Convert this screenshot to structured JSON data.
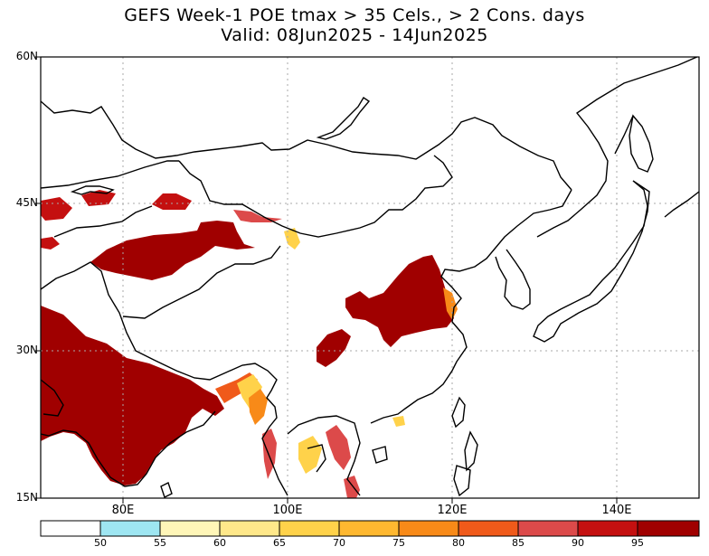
{
  "title": {
    "line1": "GEFS Week-1 POE tmax > 35 Cels., > 2 Cons. days",
    "line2": "Valid: 08Jun2025 - 14Jun2025"
  },
  "map": {
    "lat_labels": [
      "60N",
      "45N",
      "30N",
      "15N"
    ],
    "lon_labels": [
      "80E",
      "100E",
      "120E",
      "140E"
    ],
    "colors": {
      "land_outline": "#000000",
      "grid": "#aaaaaa",
      "p95": "#a00000",
      "p90": "#c41010",
      "p85": "#dc4a4a",
      "p80": "#f05a1a",
      "p75": "#f88a18",
      "p70": "#ffb830",
      "p65": "#ffd24a",
      "p60": "#ffe88a",
      "p55": "#fff6b8",
      "p50": "#9ee6f2"
    }
  },
  "colorbar": {
    "labels": [
      "50",
      "55",
      "60",
      "65",
      "70",
      "75",
      "80",
      "85",
      "90",
      "95"
    ],
    "colors": [
      "#ffffff",
      "#9ee6f2",
      "#fff6b8",
      "#ffe88a",
      "#ffd24a",
      "#ffb830",
      "#f88a18",
      "#f05a1a",
      "#dc4a4a",
      "#c41010",
      "#a00000"
    ]
  }
}
